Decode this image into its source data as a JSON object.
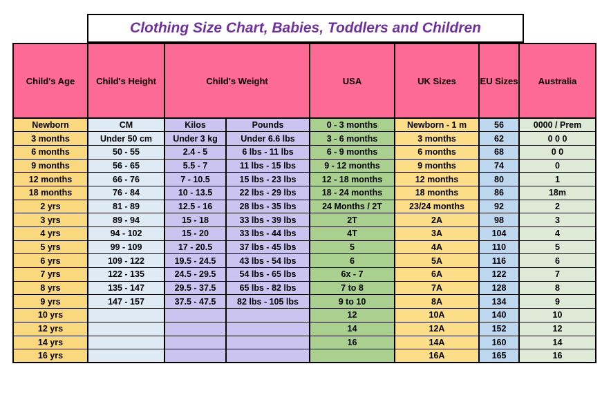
{
  "title": "Clothing Size Chart, Babies, Toddlers and Children",
  "header": {
    "age": "Child's Age",
    "height": "Child's Height",
    "weight": "Child's Weight",
    "usa": "USA",
    "uk": "UK Sizes",
    "eu": "EU Sizes",
    "australia": "Australia"
  },
  "chart_data": {
    "type": "table",
    "title": "Clothing Size Chart, Babies, Toddlers and Children",
    "columns": [
      "Child's Age",
      "Child's Height",
      "Child's Weight - Kilos",
      "Child's Weight - Pounds",
      "USA",
      "UK Sizes",
      "EU Sizes",
      "Australia"
    ],
    "rows": [
      [
        "Newborn",
        "CM",
        "Kilos",
        "Pounds",
        "0 - 3 months",
        "Newborn - 1 m",
        "56",
        "0000 / Prem"
      ],
      [
        "3 months",
        "Under 50 cm",
        "Under 3 kg",
        "Under 6.6 lbs",
        "3 - 6 months",
        "3 months",
        "62",
        "0 0 0"
      ],
      [
        "6 months",
        "50 - 55",
        "2.4 - 5",
        "6 lbs - 11 lbs",
        "6 - 9 months",
        "6 months",
        "68",
        "0 0"
      ],
      [
        "9 months",
        "56 - 65",
        "5.5 - 7",
        "11 lbs - 15 lbs",
        "9 - 12 months",
        "9 months",
        "74",
        "0"
      ],
      [
        "12 months",
        "66 - 76",
        "7 - 10.5",
        "15 lbs - 23 lbs",
        "12 - 18 months",
        "12 months",
        "80",
        "1"
      ],
      [
        "18 months",
        "76 - 84",
        "10 - 13.5",
        "22 lbs - 29 lbs",
        "18 - 24 months",
        "18 months",
        "86",
        "18m"
      ],
      [
        "2 yrs",
        "81 - 89",
        "12.5 - 16",
        "28 lbs - 35 lbs",
        "24 Months / 2T",
        "23/24 months",
        "92",
        "2"
      ],
      [
        "3 yrs",
        "89 - 94",
        "15 - 18",
        "33 lbs - 39 lbs",
        "2T",
        "2A",
        "98",
        "3"
      ],
      [
        "4 yrs",
        "94 - 102",
        "15 - 20",
        "33 lbs - 44 lbs",
        "4T",
        "3A",
        "104",
        "4"
      ],
      [
        "5 yrs",
        "99 - 109",
        "17 - 20.5",
        "37 lbs - 45 lbs",
        "5",
        "4A",
        "110",
        "5"
      ],
      [
        "6 yrs",
        "109 - 122",
        "19.5 - 24.5",
        "43 lbs - 54 lbs",
        "6",
        "5A",
        "116",
        "6"
      ],
      [
        "7 yrs",
        "122 - 135",
        "24.5 - 29.5",
        "54 lbs - 65 lbs",
        "6x - 7",
        "6A",
        "122",
        "7"
      ],
      [
        "8 yrs",
        "135 - 147",
        "29.5 - 37.5",
        "65 lbs - 82 lbs",
        "7 to 8",
        "7A",
        "128",
        "8"
      ],
      [
        "9 yrs",
        "147 - 157",
        "37.5 - 47.5",
        "82 lbs - 105 lbs",
        "9 to 10",
        "8A",
        "134",
        "9"
      ],
      [
        "10 yrs",
        "",
        "",
        "",
        "12",
        "10A",
        "140",
        "10"
      ],
      [
        "12 yrs",
        "",
        "",
        "",
        "14",
        "12A",
        "152",
        "12"
      ],
      [
        "14 yrs",
        "",
        "",
        "",
        "16",
        "14A",
        "160",
        "14"
      ],
      [
        "16 yrs",
        "",
        "",
        "",
        "",
        "16A",
        "165",
        "16"
      ]
    ]
  },
  "colors": {
    "title_color": "#7030A0",
    "header_bg": "#FC6A95",
    "age_bg": "#FAD87E",
    "height_bg": "#DEEAF4",
    "weight_bg": "#CBC3F0",
    "usa_bg": "#A9D08E",
    "uk_bg": "#FCDE89",
    "eu_bg": "#BDD7EE",
    "australia_bg": "#DEEAD6"
  }
}
